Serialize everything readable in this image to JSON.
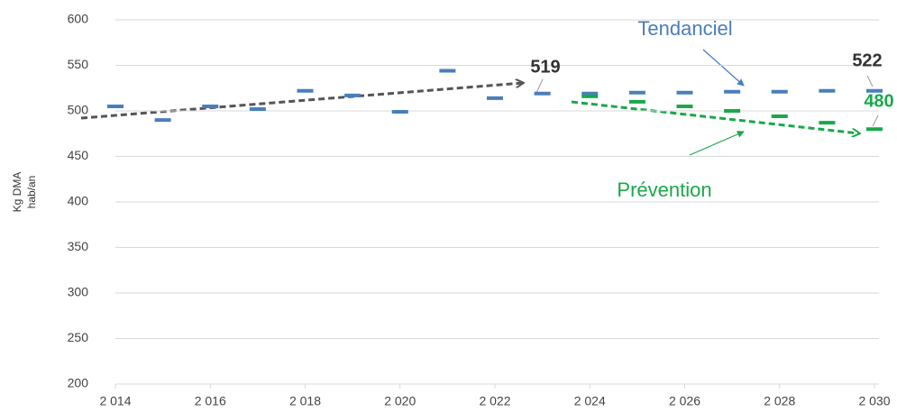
{
  "chart_data": {
    "type": "line",
    "ylabel": [
      "Kg DMA",
      "hab/an"
    ],
    "x": [
      2014,
      2015,
      2016,
      2017,
      2018,
      2019,
      2020,
      2021,
      2022,
      2023,
      2024,
      2025,
      2026,
      2027,
      2028,
      2029,
      2030
    ],
    "xlim": [
      2014,
      2030
    ],
    "xticks": [
      {
        "value": 2014,
        "label": "2 014"
      },
      {
        "value": 2016,
        "label": "2 016"
      },
      {
        "value": 2018,
        "label": "2 018"
      },
      {
        "value": 2020,
        "label": "2 020"
      },
      {
        "value": 2022,
        "label": "2 022"
      },
      {
        "value": 2024,
        "label": "2 024"
      },
      {
        "value": 2026,
        "label": "2 026"
      },
      {
        "value": 2028,
        "label": "2 028"
      },
      {
        "value": 2030,
        "label": "2 030"
      }
    ],
    "ylim": [
      200,
      600
    ],
    "yticks": [
      200,
      250,
      300,
      350,
      400,
      450,
      500,
      550,
      600
    ],
    "grid": true,
    "series": [
      {
        "name": "Tendanciel",
        "color": "#4a7ebb",
        "values": [
          505,
          490,
          505,
          502,
          522,
          517,
          499,
          544,
          514,
          519,
          519,
          520,
          520,
          521,
          521,
          522,
          522
        ]
      },
      {
        "name": "Prévention",
        "color": "#1aa84a",
        "values": [
          null,
          null,
          null,
          null,
          null,
          null,
          null,
          null,
          null,
          null,
          516,
          510,
          505,
          500,
          494,
          487,
          480
        ]
      }
    ],
    "annotations": [
      "519",
      "522",
      "480"
    ]
  }
}
